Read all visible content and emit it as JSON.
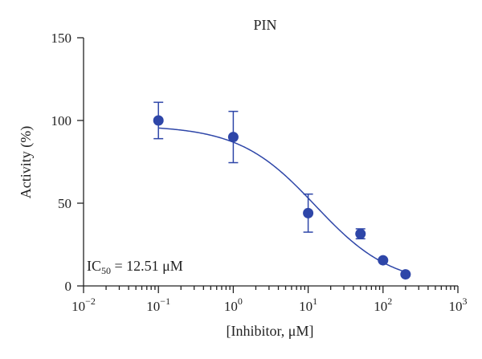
{
  "chart_data": {
    "type": "scatter",
    "title": "PIN",
    "xlabel": "[Inhibitor, μM]",
    "ylabel": "Activity (%)",
    "x_scale": "log",
    "xlim": [
      0.01,
      1000
    ],
    "ylim": [
      0,
      150
    ],
    "x_ticks": [
      {
        "value": 0.01,
        "base": "10",
        "exp": "−2"
      },
      {
        "value": 0.1,
        "base": "10",
        "exp": "−1"
      },
      {
        "value": 1,
        "base": "10",
        "exp": "0"
      },
      {
        "value": 10,
        "base": "10",
        "exp": "1"
      },
      {
        "value": 100,
        "base": "10",
        "exp": "2"
      },
      {
        "value": 1000,
        "base": "10",
        "exp": "3"
      }
    ],
    "y_ticks": [
      {
        "value": 0,
        "label": "0"
      },
      {
        "value": 50,
        "label": "50"
      },
      {
        "value": 100,
        "label": "100"
      },
      {
        "value": 150,
        "label": "150"
      }
    ],
    "grid": false,
    "color": "#2e46a8",
    "points": [
      {
        "x": 0.1,
        "y": 100,
        "err": 11
      },
      {
        "x": 1,
        "y": 90,
        "err": 15.5
      },
      {
        "x": 10,
        "y": 44,
        "err": 11.5
      },
      {
        "x": 50,
        "y": 31.5,
        "err": 3
      },
      {
        "x": 100,
        "y": 15.5,
        "err": 0
      },
      {
        "x": 200,
        "y": 7,
        "err": 0
      }
    ],
    "fit": {
      "top": 97,
      "bottom": 0,
      "ic50": 12.51,
      "hill": 0.85
    },
    "annotation": {
      "prefix": "IC",
      "subscript": "50",
      "suffix": " = 12.51 μM"
    }
  }
}
